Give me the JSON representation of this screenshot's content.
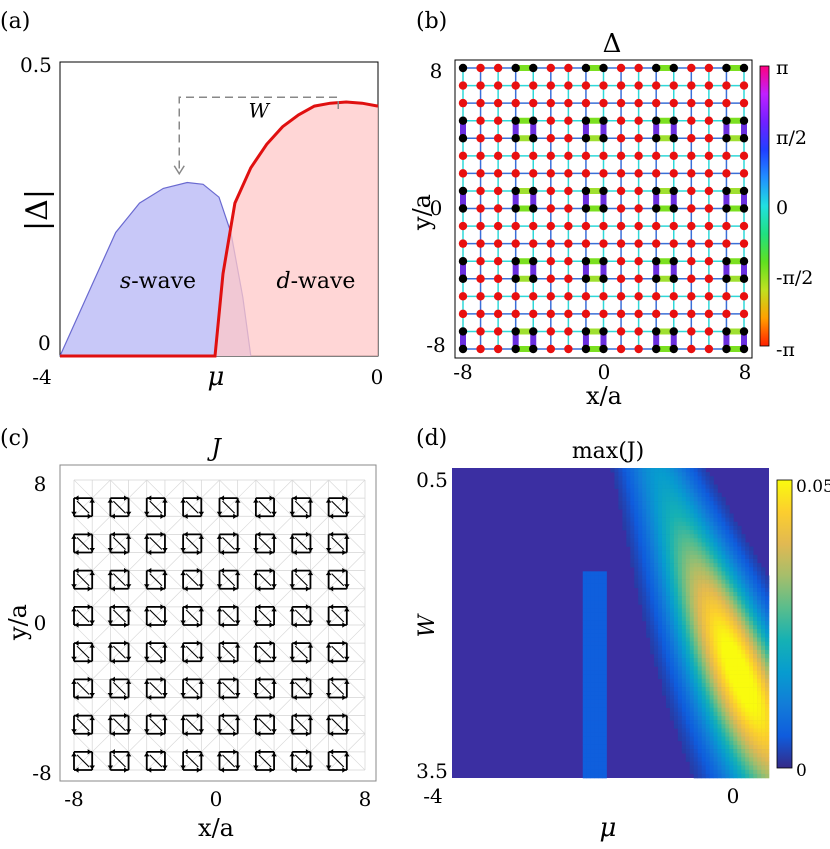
{
  "panels": {
    "a": {
      "label": "(a)"
    },
    "b": {
      "label": "(b)",
      "title": "Δ"
    },
    "c": {
      "label": "(c)",
      "title": "J"
    },
    "d": {
      "label": "(d)",
      "title": "max(J)"
    }
  },
  "chart_data": [
    {
      "panel": "a",
      "type": "area",
      "xlabel": "μ",
      "ylabel": "|Δ|",
      "xlim": [
        -4,
        0
      ],
      "ylim": [
        0,
        0.5
      ],
      "xtick_labels": [
        "-4",
        "μ",
        "0"
      ],
      "ytick_labels": [
        "0.5",
        "0"
      ],
      "series": [
        {
          "name": "s-wave",
          "color": "#c8c8f8",
          "edge": "#6a6ad0",
          "x": [
            -4,
            -3.6,
            -3.3,
            -3.0,
            -2.7,
            -2.4,
            -2.2,
            -2.0,
            -1.85,
            -1.7,
            -1.6
          ],
          "y": [
            0,
            0.12,
            0.21,
            0.26,
            0.285,
            0.295,
            0.292,
            0.27,
            0.21,
            0.1,
            0
          ]
        },
        {
          "name": "d-wave",
          "color": "#ffc8c8",
          "edge": "#e01010",
          "x": [
            -4,
            -2.05,
            -1.95,
            -1.8,
            -1.6,
            -1.4,
            -1.2,
            -1.0,
            -0.8,
            -0.6,
            -0.4,
            -0.2,
            0
          ],
          "y": [
            0,
            0,
            0.14,
            0.26,
            0.32,
            0.36,
            0.39,
            0.41,
            0.425,
            0.43,
            0.432,
            0.43,
            0.425
          ]
        }
      ],
      "annotations": [
        {
          "text": "W",
          "kind": "dashed-bracket",
          "from_x": -0.5,
          "to_x": -2.5,
          "level": 0.44
        }
      ]
    },
    {
      "panel": "b",
      "type": "lattice",
      "title": "Δ",
      "xlabel": "x/a",
      "ylabel": "y/a",
      "xlim": [
        -8,
        8
      ],
      "ylim": [
        -8,
        8
      ],
      "xtick_labels": [
        "-8",
        "0",
        "8"
      ],
      "ytick_labels": [
        "8",
        "0",
        "-8"
      ],
      "colorbar": {
        "min_label": "-π",
        "max_label": "π",
        "tick_labels": [
          "π",
          "π/2",
          "0",
          "-π/2",
          "-π"
        ]
      },
      "site_colors": {
        "normal": "#e81010",
        "cluster": "#000000"
      },
      "cluster_period": 4,
      "cluster_offsets": [
        0,
        3
      ]
    },
    {
      "panel": "c",
      "type": "vector-field",
      "title": "J",
      "xlabel": "x/a",
      "ylabel": "y/a",
      "xlim": [
        -8,
        8
      ],
      "ylim": [
        -8,
        8
      ],
      "xtick_labels": [
        "-8",
        "0",
        "8"
      ],
      "ytick_labels": [
        "8",
        "0",
        "-8"
      ],
      "plaquette_centers": [
        -7.5,
        -5.5,
        -3.5,
        -1.5,
        0.5,
        2.5,
        4.5,
        6.5
      ]
    },
    {
      "panel": "d",
      "type": "heatmap",
      "title": "max(J)",
      "xlabel": "μ",
      "ylabel": "W",
      "xtick_labels": [
        "-4",
        "0"
      ],
      "ytick_labels": [
        "0.5",
        "3.5"
      ],
      "xlim": [
        -4,
        0.3
      ],
      "ylim": [
        0.5,
        3.5
      ],
      "colorbar": {
        "min": 0,
        "max": 0.05,
        "tick_labels": [
          "0.05",
          "0"
        ]
      }
    }
  ]
}
